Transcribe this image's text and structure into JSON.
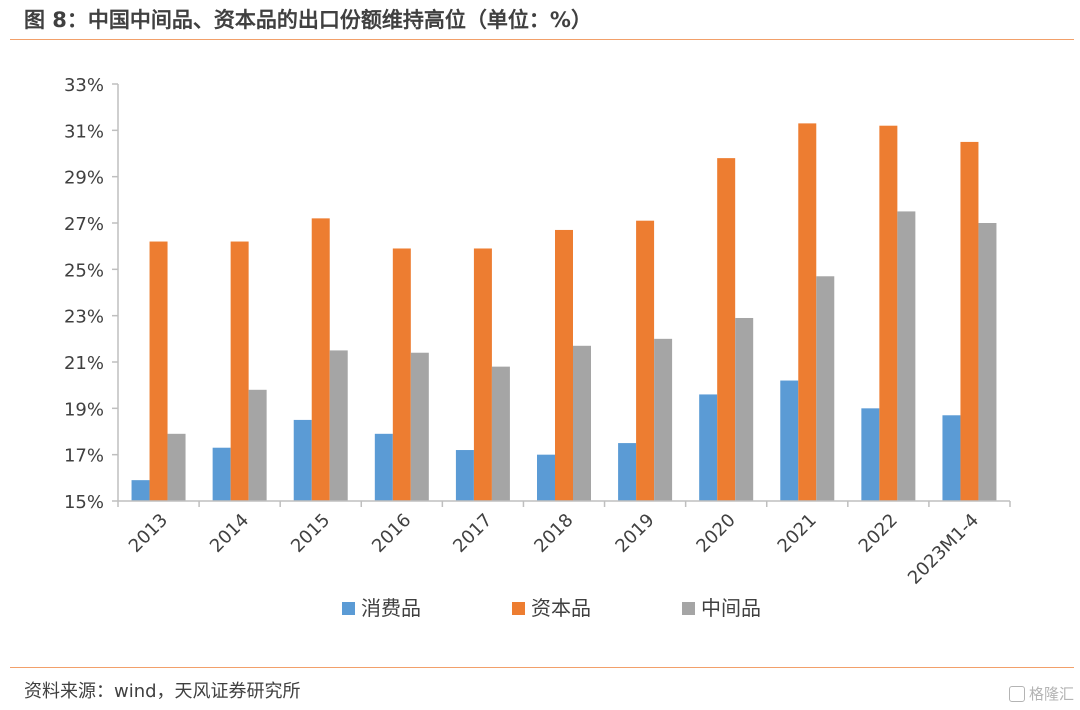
{
  "title": "图 8：中国中间品、资本品的出口份额维持高位（单位：%）",
  "source": "资料来源：wind，天风证券研究所",
  "watermark": "格隆汇",
  "chart_data": {
    "type": "bar",
    "categories": [
      "2013",
      "2014",
      "2015",
      "2016",
      "2017",
      "2018",
      "2019",
      "2020",
      "2021",
      "2022",
      "2023M1-4"
    ],
    "series": [
      {
        "name": "消费品",
        "color": "#5b9bd5",
        "values": [
          15.9,
          17.3,
          18.5,
          17.9,
          17.2,
          17.0,
          17.5,
          19.6,
          20.2,
          19.0,
          18.7
        ]
      },
      {
        "name": "资本品",
        "color": "#ed7d31",
        "values": [
          26.2,
          26.2,
          27.2,
          25.9,
          25.9,
          26.7,
          27.1,
          29.8,
          31.3,
          31.2,
          30.5
        ]
      },
      {
        "name": "中间品",
        "color": "#a5a5a5",
        "values": [
          17.9,
          19.8,
          21.5,
          21.4,
          20.8,
          21.7,
          22.0,
          22.9,
          24.7,
          27.5,
          27.0
        ]
      }
    ],
    "ylim": [
      15,
      33
    ],
    "yticks": [
      15,
      17,
      19,
      21,
      23,
      25,
      27,
      29,
      31,
      33
    ],
    "ytick_labels": [
      "15%",
      "17%",
      "19%",
      "21%",
      "23%",
      "25%",
      "27%",
      "29%",
      "31%",
      "33%"
    ],
    "grid": false,
    "legend_position": "bottom"
  }
}
